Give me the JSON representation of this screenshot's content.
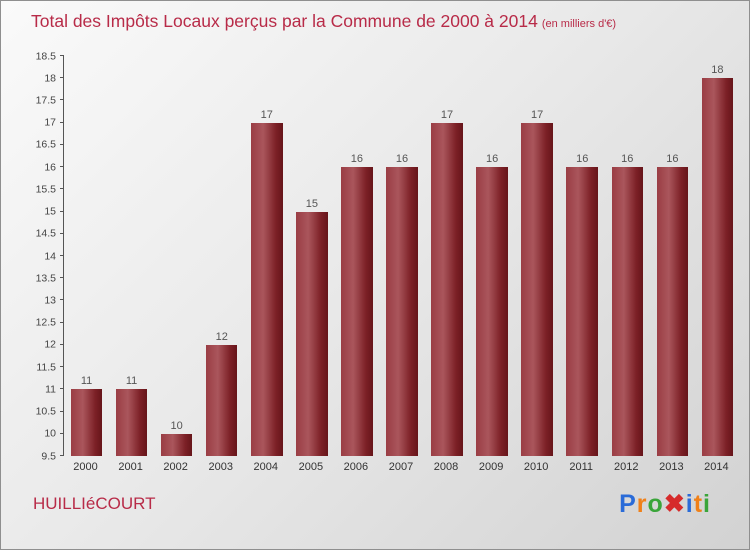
{
  "title": {
    "main": "Total des Impôts Locaux perçus par la Commune de 2000 à 2014",
    "suffix": "(en milliers d'€)"
  },
  "footer": {
    "commune": "HUILLIéCOURT"
  },
  "logo": {
    "name": "Proxiti",
    "letters": [
      {
        "ch": "P",
        "color": "#2a6bd8"
      },
      {
        "ch": "r",
        "color": "#f08018"
      },
      {
        "ch": "o",
        "color": "#3aa53a"
      },
      {
        "ch": "✖",
        "color": "#d62b2b"
      },
      {
        "ch": "i",
        "color": "#2a6bd8"
      },
      {
        "ch": "t",
        "color": "#f08018"
      },
      {
        "ch": "i",
        "color": "#3aa53a"
      }
    ]
  },
  "colors": {
    "accent_title": "#b82b48",
    "bar_main": "#8c2a31",
    "value_label": "#555555",
    "axis": "#555555"
  },
  "chart_data": {
    "type": "bar",
    "title": "Total des Impôts Locaux perçus par la Commune de 2000 à 2014",
    "unit_note": "(en milliers d'€)",
    "categories": [
      "2000",
      "2001",
      "2002",
      "2003",
      "2004",
      "2005",
      "2006",
      "2007",
      "2008",
      "2009",
      "2010",
      "2011",
      "2012",
      "2013",
      "2014"
    ],
    "values": [
      11,
      11,
      10,
      12,
      17,
      15,
      16,
      16,
      17,
      16,
      17,
      16,
      16,
      16,
      18
    ],
    "xlabel": "",
    "ylabel": "",
    "ylim": [
      9.5,
      18.5
    ],
    "ytick_step": 0.5,
    "grid": false,
    "legend": null
  }
}
